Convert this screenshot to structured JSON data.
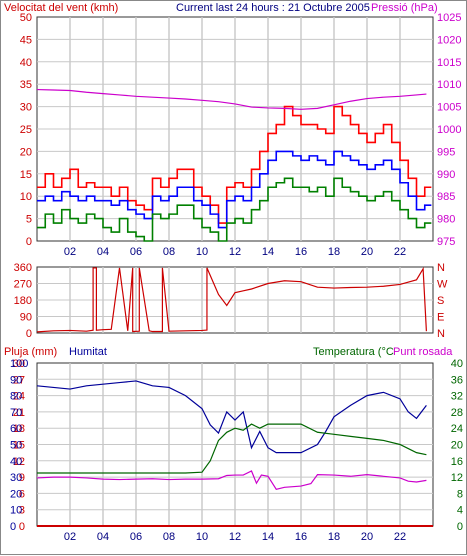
{
  "header": {
    "wind_label": "Velocitat del vent (kmh)",
    "subtitle": "Current last 24 hours : 21 Octubre 2005",
    "pressure_label": "Pressió (hPa)"
  },
  "panel3_header": {
    "rain_label": "Pluja (mm)",
    "humidity_label": "Humitat",
    "temp_label": "Temperatura (°C",
    "dew_label": "Punt rosada"
  },
  "colors": {
    "gust": "#ff0000",
    "wind_avg": "#0000ff",
    "wind_min": "#008000",
    "pressure": "#cc00cc",
    "direction": "#cc0000",
    "humidity": "#000099",
    "temperature": "#006600",
    "dew_point": "#cc00cc",
    "rain": "#cc0000",
    "grid": "#c8c8c8",
    "axis_left": "#cc0000",
    "axis_right_top": "#cc00cc",
    "axis_right_bottom": "#006600"
  },
  "chart_data": [
    {
      "type": "line",
      "title": "Current last 24 hours : 21 Octubre 2005",
      "x_ticks": [
        "02",
        "04",
        "06",
        "08",
        "10",
        "12",
        "14",
        "16",
        "18",
        "20",
        "22"
      ],
      "x_range": [
        0,
        24
      ],
      "y_left": {
        "label": "Velocitat del vent (kmh)",
        "ticks": [
          0,
          5,
          10,
          15,
          20,
          25,
          30,
          35,
          40,
          45,
          50
        ],
        "range": [
          0,
          50
        ]
      },
      "y_right": {
        "label": "Pressió (hPa)",
        "ticks": [
          975,
          980,
          985,
          990,
          995,
          1000,
          1005,
          1010,
          1015,
          1020,
          1025
        ],
        "range": [
          975,
          1025
        ]
      },
      "grid": true,
      "series": [
        {
          "name": "gust",
          "color_key": "gust",
          "axis": "left",
          "x": [
            0,
            0.5,
            1,
            1.5,
            2,
            2.5,
            3,
            3.5,
            4,
            4.5,
            5,
            5.5,
            6,
            6.5,
            7,
            7.5,
            8,
            8.5,
            9,
            9.5,
            10,
            10.5,
            11,
            11.5,
            12,
            12.5,
            13,
            13.5,
            14,
            14.5,
            15,
            15.5,
            16,
            16.5,
            17,
            17.5,
            18,
            18.5,
            19,
            19.5,
            20,
            20.5,
            21,
            21.5,
            22,
            22.5,
            23,
            23.5
          ],
          "values": [
            12,
            15,
            12,
            14,
            16,
            12,
            13,
            12,
            12,
            10,
            12,
            9,
            8,
            7,
            14,
            12,
            14,
            16,
            16,
            12,
            10,
            8,
            4,
            12,
            13,
            12,
            16,
            20,
            24,
            26,
            30,
            28,
            26,
            26,
            25,
            24,
            30,
            28,
            26,
            24,
            22,
            24,
            26,
            22,
            18,
            14,
            10,
            12
          ]
        },
        {
          "name": "wind_avg",
          "color_key": "wind_avg",
          "axis": "left",
          "x": [
            0,
            0.5,
            1,
            1.5,
            2,
            2.5,
            3,
            3.5,
            4,
            4.5,
            5,
            5.5,
            6,
            6.5,
            7,
            7.5,
            8,
            8.5,
            9,
            9.5,
            10,
            10.5,
            11,
            11.5,
            12,
            12.5,
            13,
            13.5,
            14,
            14.5,
            15,
            15.5,
            16,
            16.5,
            17,
            17.5,
            18,
            18.5,
            19,
            19.5,
            20,
            20.5,
            21,
            21.5,
            22,
            22.5,
            23,
            23.5
          ],
          "values": [
            9,
            10,
            9,
            11,
            10,
            9,
            10,
            9,
            9,
            8,
            9,
            7,
            6,
            5,
            10,
            9,
            10,
            12,
            12,
            9,
            8,
            6,
            3,
            9,
            10,
            9,
            12,
            15,
            18,
            20,
            20,
            19,
            18,
            19,
            18,
            17,
            20,
            19,
            18,
            17,
            16,
            17,
            18,
            16,
            13,
            10,
            7,
            8
          ]
        },
        {
          "name": "wind_min",
          "color_key": "wind_min",
          "axis": "left",
          "x": [
            0,
            0.5,
            1,
            1.5,
            2,
            2.5,
            3,
            3.5,
            4,
            4.5,
            5,
            5.5,
            6,
            6.5,
            7,
            7.5,
            8,
            8.5,
            9,
            9.5,
            10,
            10.5,
            11,
            11.5,
            12,
            12.5,
            13,
            13.5,
            14,
            14.5,
            15,
            15.5,
            16,
            16.5,
            17,
            17.5,
            18,
            18.5,
            19,
            19.5,
            20,
            20.5,
            21,
            21.5,
            22,
            22.5,
            23,
            23.5
          ],
          "values": [
            3,
            6,
            4,
            7,
            5,
            4,
            6,
            5,
            3,
            2,
            5,
            2,
            1,
            0,
            6,
            5,
            6,
            8,
            8,
            5,
            3,
            2,
            0,
            4,
            5,
            4,
            7,
            9,
            12,
            13,
            14,
            12,
            12,
            11,
            12,
            10,
            14,
            12,
            11,
            10,
            9,
            10,
            11,
            9,
            7,
            5,
            3,
            4
          ]
        },
        {
          "name": "pressure",
          "color_key": "pressure",
          "axis": "right",
          "x": [
            0,
            1,
            2,
            3,
            4,
            5,
            6,
            7,
            8,
            9,
            10,
            11,
            12,
            13,
            14,
            15,
            16,
            17,
            18,
            19,
            20,
            21,
            22,
            23,
            23.6
          ],
          "values": [
            1008.8,
            1008.7,
            1008.6,
            1008.2,
            1007.9,
            1007.6,
            1007.3,
            1007.1,
            1006.9,
            1006.7,
            1006.4,
            1006.1,
            1005.6,
            1004.9,
            1004.7,
            1004.6,
            1004.4,
            1004.6,
            1005.4,
            1006.2,
            1006.8,
            1007.1,
            1007.3,
            1007.6,
            1007.8
          ]
        }
      ]
    },
    {
      "type": "line",
      "x_ticks": [
        "02",
        "04",
        "06",
        "08",
        "10",
        "12",
        "14",
        "16",
        "18",
        "20",
        "22"
      ],
      "x_range": [
        0,
        24
      ],
      "y_left": {
        "ticks": [
          0,
          90,
          180,
          270,
          360
        ],
        "range": [
          0,
          360
        ]
      },
      "y_right": {
        "ticks": [
          "N",
          "E",
          "S",
          "W",
          "N"
        ]
      },
      "grid": true,
      "series": [
        {
          "name": "direction",
          "color_key": "direction",
          "axis": "left",
          "x": [
            0,
            1,
            2,
            3,
            3.4,
            3.4,
            3.6,
            3.6,
            4,
            4.5,
            5,
            5.5,
            5.8,
            5.8,
            6.2,
            6.2,
            6.8,
            7,
            7.6,
            7.6,
            8,
            9,
            10,
            10.3,
            10.3,
            11,
            11.5,
            12,
            12.5,
            13,
            14,
            15,
            16,
            17,
            18,
            19,
            20,
            21,
            22,
            23,
            23.4,
            23.6
          ],
          "values": [
            6,
            12,
            14,
            10,
            15,
            355,
            355,
            15,
            18,
            20,
            355,
            12,
            355,
            8,
            10,
            355,
            12,
            8,
            8,
            355,
            10,
            12,
            14,
            16,
            355,
            210,
            150,
            220,
            230,
            240,
            270,
            285,
            280,
            250,
            245,
            248,
            250,
            255,
            265,
            290,
            350,
            10
          ]
        }
      ]
    },
    {
      "type": "line",
      "x_ticks": [
        "02",
        "04",
        "06",
        "08",
        "10",
        "12",
        "14",
        "16",
        "18",
        "20",
        "22"
      ],
      "x_range": [
        0,
        24
      ],
      "y_left_rain": {
        "label": "Pluja (mm)",
        "ticks": [
          0,
          3,
          6,
          9,
          12,
          15,
          18,
          21,
          24,
          27,
          30
        ],
        "range": [
          0,
          30
        ]
      },
      "y_left_hum": {
        "label": "Humitat",
        "ticks": [
          0,
          10,
          20,
          30,
          40,
          50,
          60,
          70,
          80,
          90,
          100
        ],
        "range": [
          0,
          100
        ]
      },
      "y_right": {
        "label": "Temperatura (°C",
        "ticks": [
          0,
          4,
          8,
          12,
          16,
          20,
          24,
          28,
          32,
          36,
          40
        ],
        "range": [
          0,
          40
        ]
      },
      "grid": true,
      "series": [
        {
          "name": "rain",
          "color_key": "rain",
          "axis": "rain",
          "x": [
            0,
            24
          ],
          "values": [
            0,
            0
          ]
        },
        {
          "name": "humidity",
          "color_key": "humidity",
          "axis": "hum",
          "x": [
            0,
            1,
            2,
            3,
            4,
            5,
            6,
            7,
            8,
            9,
            10,
            10.5,
            11,
            11.5,
            12,
            12.5,
            13,
            13.5,
            14,
            14.5,
            15,
            16,
            17,
            17.5,
            18,
            19,
            20,
            21,
            22,
            22.5,
            23,
            23.6
          ],
          "values": [
            86,
            85,
            84,
            86,
            87,
            88,
            89,
            86,
            85,
            80,
            72,
            62,
            57,
            70,
            65,
            70,
            48,
            58,
            48,
            45,
            45,
            45,
            50,
            58,
            67,
            74,
            80,
            82,
            78,
            70,
            66,
            74
          ]
        },
        {
          "name": "temperature",
          "color_key": "temperature",
          "axis": "right",
          "x": [
            0,
            1,
            2,
            3,
            4,
            5,
            6,
            7,
            8,
            9,
            10,
            10.5,
            11,
            11.5,
            12,
            12.5,
            13,
            13.5,
            14,
            14.5,
            15,
            16,
            17,
            18,
            19,
            20,
            21,
            22,
            22.5,
            23,
            23.6
          ],
          "values": [
            13,
            13,
            13,
            13,
            13,
            13,
            13,
            13,
            13,
            13,
            13.2,
            16,
            21,
            23,
            24,
            23.5,
            25,
            24,
            25,
            25,
            25,
            25,
            23,
            22.5,
            22,
            21.5,
            21,
            20,
            19,
            18,
            17.5
          ]
        },
        {
          "name": "dew_point",
          "color_key": "dew_point",
          "axis": "right",
          "x": [
            0,
            1,
            2,
            3,
            4,
            5,
            6,
            7,
            8,
            9,
            10,
            11,
            11.5,
            12,
            12.5,
            13,
            13.3,
            13.6,
            14,
            14.5,
            15,
            16,
            16.6,
            17,
            18,
            19,
            20,
            21,
            22,
            22.5,
            23,
            23.6
          ],
          "values": [
            11.8,
            12,
            12,
            11.8,
            11.5,
            11.4,
            11.5,
            11.6,
            11.4,
            11.5,
            11.5,
            11.6,
            12.4,
            12.5,
            12.5,
            13.5,
            10.5,
            12.5,
            12.2,
            9,
            9.5,
            9.8,
            10.4,
            12.6,
            12.5,
            12.2,
            12.6,
            12.2,
            11.8,
            11,
            10.8,
            11.2
          ]
        }
      ]
    }
  ]
}
